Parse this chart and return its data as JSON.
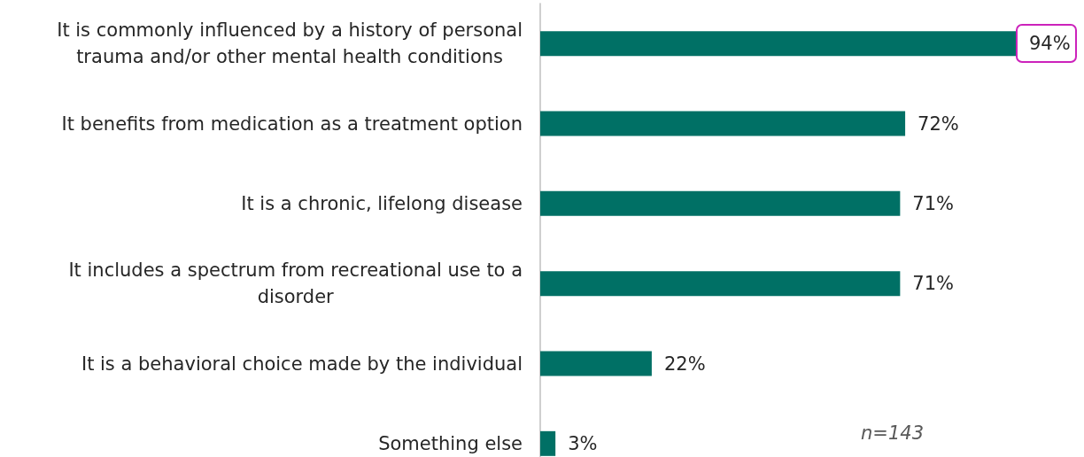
{
  "chart_data": {
    "type": "bar",
    "orientation": "horizontal",
    "categories": [
      "It is commonly influenced by a history of personal trauma and/or other mental health conditions",
      "It benefits from medication as a treatment option",
      "It is a chronic, lifelong disease",
      "It includes a spectrum from recreational use to a disorder",
      "It is a behavioral choice made by the individual",
      "Something else"
    ],
    "values": [
      94,
      72,
      71,
      71,
      22,
      3
    ],
    "value_labels": [
      "94%",
      "72%",
      "71%",
      "71%",
      "22%",
      "3%"
    ],
    "color": "#007065",
    "tick_labels": "y",
    "annotations": [
      "n=143"
    ]
  }
}
